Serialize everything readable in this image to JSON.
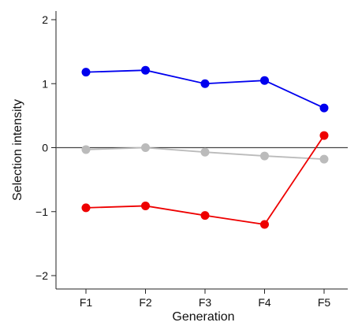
{
  "chart_data": {
    "type": "line",
    "categories": [
      "F1",
      "F2",
      "F3",
      "F4",
      "F5"
    ],
    "xlabel": "Generation",
    "ylabel": "Selection intensity",
    "ylim": [
      -2,
      2
    ],
    "yticks": [
      -2,
      -1,
      0,
      1,
      2
    ],
    "ytick_labels": [
      "−2",
      "−1",
      "0",
      "1",
      "2"
    ],
    "zero_line": true,
    "grid": false,
    "series": [
      {
        "color": "#0000ee",
        "values": [
          1.18,
          1.21,
          1.0,
          1.05,
          0.62
        ]
      },
      {
        "color": "#bbbbbb",
        "values": [
          -0.03,
          0.0,
          -0.07,
          -0.13,
          -0.18
        ]
      },
      {
        "color": "#ee0000",
        "values": [
          -0.94,
          -0.91,
          -1.06,
          -1.2,
          0.19
        ]
      }
    ]
  }
}
